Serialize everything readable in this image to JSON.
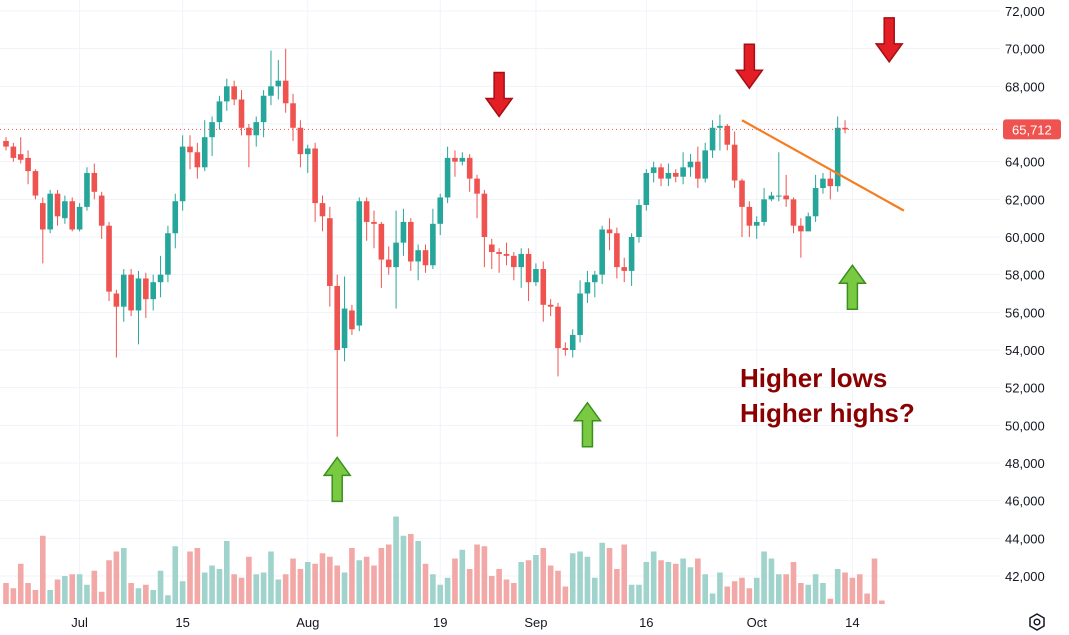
{
  "chart_data": {
    "type": "candlestick",
    "instrument_hint": "BTC daily",
    "ylim": [
      40500,
      72500
    ],
    "y_ticks": [
      "72,000",
      "70,000",
      "68,000",
      "66,000",
      "64,000",
      "62,000",
      "60,000",
      "58,000",
      "56,000",
      "54,000",
      "52,000",
      "50,000",
      "48,000",
      "46,000",
      "44,000",
      "42,000"
    ],
    "x_tick_labels": [
      {
        "label": "Jul",
        "day": 10
      },
      {
        "label": "15",
        "day": 24
      },
      {
        "label": "Aug",
        "day": 41
      },
      {
        "label": "19",
        "day": 59
      },
      {
        "label": "Sep",
        "day": 72
      },
      {
        "label": "16",
        "day": 87
      },
      {
        "label": "Oct",
        "day": 102
      },
      {
        "label": "14",
        "day": 115
      }
    ],
    "last_price_label": "65,712",
    "last_price": 65712,
    "colors": {
      "up": "#26a69a",
      "down": "#ef5350",
      "vol_up": "#9fd3cc",
      "vol_down": "#f2a8a6",
      "trendline": "#f57c20",
      "annotation": "#8b0000",
      "arrow_red": "#e31e24",
      "arrow_green": "#7ac943",
      "grid": "#f0f3fa",
      "price_line": "#ef5350"
    },
    "candles": [
      [
        65100,
        65300,
        64600,
        64800
      ],
      [
        64800,
        65000,
        64000,
        64200
      ],
      [
        64400,
        65300,
        63900,
        64100
      ],
      [
        64200,
        64600,
        62800,
        63500
      ],
      [
        63500,
        63600,
        62000,
        62200
      ],
      [
        61800,
        62100,
        58600,
        60400
      ],
      [
        60400,
        62500,
        60200,
        62300
      ],
      [
        62300,
        62500,
        60600,
        61100
      ],
      [
        61000,
        62200,
        60700,
        61900
      ],
      [
        61900,
        62100,
        60300,
        60400
      ],
      [
        60400,
        61800,
        60300,
        61600
      ],
      [
        61600,
        63700,
        61400,
        63400
      ],
      [
        63400,
        63900,
        62000,
        62400
      ],
      [
        62200,
        62400,
        59900,
        60600
      ],
      [
        60600,
        60800,
        56600,
        57100
      ],
      [
        57000,
        57200,
        53600,
        56300
      ],
      [
        56300,
        58300,
        55500,
        58000
      ],
      [
        58000,
        58300,
        55800,
        56100
      ],
      [
        56100,
        58200,
        54300,
        57800
      ],
      [
        57800,
        58100,
        55700,
        56700
      ],
      [
        56700,
        58000,
        56100,
        57600
      ],
      [
        57600,
        59000,
        56800,
        58000
      ],
      [
        58000,
        60600,
        57600,
        60200
      ],
      [
        60200,
        62300,
        59400,
        61900
      ],
      [
        61900,
        65400,
        61400,
        64800
      ],
      [
        64800,
        65400,
        63600,
        64500
      ],
      [
        64500,
        65000,
        63100,
        63700
      ],
      [
        63700,
        66200,
        63500,
        65300
      ],
      [
        65300,
        66400,
        64300,
        66100
      ],
      [
        66100,
        67500,
        65700,
        67200
      ],
      [
        67200,
        68400,
        66700,
        68000
      ],
      [
        68000,
        68300,
        67000,
        67300
      ],
      [
        67300,
        67800,
        65400,
        65800
      ],
      [
        65800,
        66000,
        63700,
        65400
      ],
      [
        65400,
        66400,
        64800,
        66100
      ],
      [
        66100,
        67800,
        65300,
        67500
      ],
      [
        67500,
        69900,
        67000,
        68000
      ],
      [
        68000,
        69400,
        67300,
        68300
      ],
      [
        68300,
        70000,
        66600,
        67100
      ],
      [
        67100,
        67600,
        65100,
        65800
      ],
      [
        65800,
        66200,
        63700,
        64400
      ],
      [
        64400,
        64900,
        63400,
        64700
      ],
      [
        64700,
        65000,
        60800,
        61800
      ],
      [
        61800,
        62200,
        60300,
        61100
      ],
      [
        61000,
        61600,
        56300,
        57400
      ],
      [
        57400,
        58000,
        49400,
        54000
      ],
      [
        54100,
        57900,
        53400,
        56200
      ],
      [
        56100,
        56400,
        54800,
        55100
      ],
      [
        55300,
        62100,
        55000,
        61900
      ],
      [
        61900,
        62100,
        59800,
        60800
      ],
      [
        60800,
        61400,
        59400,
        60700
      ],
      [
        60700,
        60800,
        57300,
        58800
      ],
      [
        58800,
        59500,
        58000,
        58400
      ],
      [
        58400,
        61400,
        56200,
        59700
      ],
      [
        59700,
        61500,
        59000,
        60800
      ],
      [
        60800,
        61000,
        58200,
        58700
      ],
      [
        58700,
        59600,
        57700,
        59300
      ],
      [
        59300,
        59600,
        58100,
        58500
      ],
      [
        58500,
        61500,
        58300,
        60700
      ],
      [
        60700,
        62300,
        60100,
        62100
      ],
      [
        62100,
        64800,
        61800,
        64200
      ],
      [
        64200,
        64600,
        63200,
        64000
      ],
      [
        64000,
        64500,
        63800,
        64200
      ],
      [
        64200,
        64400,
        62400,
        63100
      ],
      [
        63100,
        63300,
        61000,
        62300
      ],
      [
        62300,
        62500,
        58400,
        60000
      ],
      [
        59600,
        59900,
        58300,
        59200
      ],
      [
        59200,
        59400,
        58100,
        59100
      ],
      [
        59100,
        59700,
        58500,
        59000
      ],
      [
        59000,
        59200,
        57700,
        58400
      ],
      [
        58400,
        59400,
        57300,
        59100
      ],
      [
        59100,
        59400,
        56600,
        57600
      ],
      [
        57600,
        58600,
        57400,
        58300
      ],
      [
        58300,
        58700,
        55500,
        56400
      ],
      [
        56400,
        56700,
        55800,
        56300
      ],
      [
        56300,
        56500,
        52600,
        54100
      ],
      [
        54100,
        54400,
        53700,
        54000
      ],
      [
        54000,
        55100,
        53600,
        54800
      ],
      [
        54800,
        57700,
        54400,
        57000
      ],
      [
        57000,
        58200,
        56500,
        57600
      ],
      [
        57600,
        58200,
        56800,
        58000
      ],
      [
        58000,
        60600,
        57500,
        60400
      ],
      [
        60400,
        61000,
        59300,
        60200
      ],
      [
        60200,
        60500,
        57800,
        58400
      ],
      [
        58400,
        58900,
        57600,
        58200
      ],
      [
        58200,
        60200,
        57400,
        60000
      ],
      [
        60000,
        62000,
        59700,
        61700
      ],
      [
        61700,
        63600,
        61400,
        63400
      ],
      [
        63400,
        64000,
        62900,
        63700
      ],
      [
        63700,
        63900,
        62700,
        63100
      ],
      [
        63100,
        63900,
        62700,
        63400
      ],
      [
        63400,
        63600,
        62900,
        63200
      ],
      [
        63200,
        64500,
        62800,
        63700
      ],
      [
        63700,
        64400,
        63200,
        64000
      ],
      [
        64000,
        64800,
        62600,
        63100
      ],
      [
        63100,
        65000,
        62900,
        64600
      ],
      [
        64600,
        66200,
        64200,
        65800
      ],
      [
        65800,
        66500,
        64600,
        65900
      ],
      [
        65900,
        66000,
        64600,
        64900
      ],
      [
        64900,
        65600,
        62600,
        63000
      ],
      [
        63000,
        63100,
        60000,
        61600
      ],
      [
        61600,
        61900,
        60000,
        60600
      ],
      [
        60600,
        61100,
        59900,
        60800
      ],
      [
        60800,
        62600,
        60600,
        62000
      ],
      [
        62000,
        62400,
        61900,
        62200
      ],
      [
        62200,
        64500,
        61900,
        62200
      ],
      [
        62200,
        63300,
        61600,
        62000
      ],
      [
        62000,
        62100,
        60200,
        60600
      ],
      [
        60600,
        61000,
        58900,
        60300
      ],
      [
        60300,
        61300,
        60300,
        61100
      ],
      [
        61100,
        63300,
        60800,
        62600
      ],
      [
        62600,
        63400,
        62300,
        63100
      ],
      [
        63100,
        63500,
        62000,
        62700
      ],
      [
        62700,
        66400,
        62400,
        65800
      ],
      [
        65800,
        66200,
        65500,
        65712
      ]
    ],
    "volumes": [
      0.12,
      0.09,
      0.23,
      0.12,
      0.08,
      0.39,
      0.08,
      0.14,
      0.16,
      0.17,
      0.17,
      0.11,
      0.19,
      0.07,
      0.25,
      0.3,
      0.32,
      0.12,
      0.09,
      0.11,
      0.08,
      0.19,
      0.05,
      0.33,
      0.13,
      0.3,
      0.32,
      0.18,
      0.22,
      0.2,
      0.36,
      0.17,
      0.15,
      0.27,
      0.17,
      0.18,
      0.3,
      0.14,
      0.17,
      0.26,
      0.2,
      0.24,
      0.23,
      0.29,
      0.27,
      0.22,
      0.18,
      0.32,
      0.25,
      0.27,
      0.22,
      0.32,
      0.34,
      0.5,
      0.39,
      0.4,
      0.36,
      0.23,
      0.17,
      0.11,
      0.15,
      0.26,
      0.31,
      0.2,
      0.34,
      0.33,
      0.16,
      0.2,
      0.14,
      0.12,
      0.24,
      0.25,
      0.28,
      0.32,
      0.22,
      0.19,
      0.1,
      0.29,
      0.3,
      0.27,
      0.15,
      0.35,
      0.32,
      0.2,
      0.34,
      0.11,
      0.11,
      0.24,
      0.3,
      0.25,
      0.24,
      0.23,
      0.26,
      0.21,
      0.26,
      0.17,
      0.06,
      0.18,
      0.1,
      0.13,
      0.15,
      0.09,
      0.15,
      0.3,
      0.26,
      0.17,
      0.17,
      0.24,
      0.12,
      0.11,
      0.17,
      0.12,
      0.03,
      0.2,
      0.18,
      0.15,
      0.17,
      0.06,
      0.26,
      0.02
    ],
    "trendline": {
      "start": {
        "day": 100,
        "price": 66200
      },
      "end": {
        "day": 122,
        "price": 61400
      }
    },
    "annotations": {
      "red_arrows": [
        {
          "day": 67,
          "price": 66400
        },
        {
          "day": 101,
          "price": 67900
        },
        {
          "day": 120,
          "price": 69300
        }
      ],
      "green_arrows": [
        {
          "day": 45,
          "price": 48300
        },
        {
          "day": 79,
          "price": 51200
        },
        {
          "day": 115,
          "price": 58500
        }
      ],
      "text_lines": [
        "Higher lows",
        "Higher highs?"
      ]
    }
  },
  "icons": {
    "settings": "settings-icon"
  }
}
